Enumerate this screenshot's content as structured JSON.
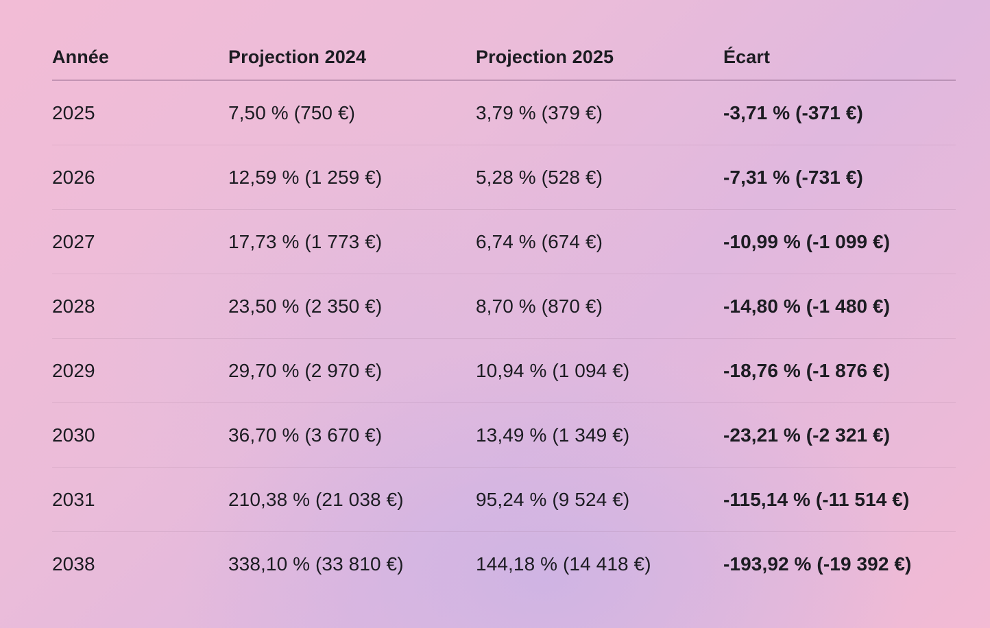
{
  "table": {
    "headers": [
      "Année",
      "Projection 2024",
      "Projection 2025",
      "Écart"
    ],
    "rows": [
      {
        "year": "2025",
        "p2024": "7,50 % (750 €)",
        "p2025": "3,79 % (379 €)",
        "gap": "-3,71 % (-371 €)"
      },
      {
        "year": "2026",
        "p2024": "12,59 % (1 259 €)",
        "p2025": "5,28 % (528 €)",
        "gap": "-7,31 % (-731 €)"
      },
      {
        "year": "2027",
        "p2024": "17,73 % (1 773 €)",
        "p2025": "6,74 % (674 €)",
        "gap": "-10,99 % (-1 099 €)"
      },
      {
        "year": "2028",
        "p2024": "23,50 % (2 350 €)",
        "p2025": "8,70 % (870 €)",
        "gap": "-14,80 % (-1 480 €)"
      },
      {
        "year": "2029",
        "p2024": "29,70 % (2 970 €)",
        "p2025": "10,94 % (1 094 €)",
        "gap": "-18,76 % (-1 876 €)"
      },
      {
        "year": "2030",
        "p2024": "36,70 % (3 670 €)",
        "p2025": "13,49 % (1 349 €)",
        "gap": "-23,21 % (-2 321 €)"
      },
      {
        "year": "2031",
        "p2024": "210,38 % (21 038 €)",
        "p2025": "95,24 % (9 524 €)",
        "gap": "-115,14 % (-11 514 €)"
      },
      {
        "year": "2038",
        "p2024": "338,10 % (33 810 €)",
        "p2025": "144,18 % (14 418 €)",
        "gap": "-193,92 % (-19 392 €)"
      }
    ]
  }
}
